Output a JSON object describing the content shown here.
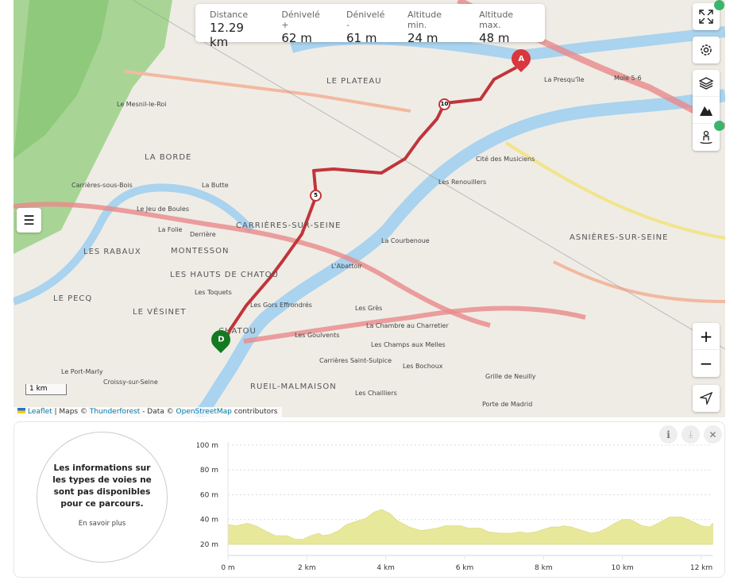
{
  "stats": [
    {
      "label": "Distance",
      "value": "12.29 km"
    },
    {
      "label": "Dénivelé +",
      "value": "62 m"
    },
    {
      "label": "Dénivelé -",
      "value": "61 m"
    },
    {
      "label": "Altitude min.",
      "value": "24 m"
    },
    {
      "label": "Altitude max.",
      "value": "48 m"
    }
  ],
  "map": {
    "labels": [
      "LE PLATEAU",
      "Le Mesnil-le-Roi",
      "LA BORDE",
      "Carrières-sous-Bois",
      "La Butte",
      "Le Jeu de Boules",
      "La Folie",
      "Derrière",
      "CARRIÈRES-SUR-SEINE",
      "MONTESSON",
      "LES RABAUX",
      "LES HAUTS DE CHATOU",
      "LE PECQ",
      "LE VÉSINET",
      "Les Toquets",
      "Les Gors Effrondrés",
      "L'Abattoir",
      "Les Grès",
      "La Courbenoue",
      "Les Renouillers",
      "Cité des Musiciens",
      "La Presqu'île",
      "Mole 5-6",
      "ASNIÈRES-SUR-SEINE",
      "La Chambre au Charretier",
      "Les Champs aux Melles",
      "Carrières Saint-Sulpice",
      "Les Bochoux",
      "Les Goulvents",
      "RUEIL-MALMAISON",
      "Les Chailliers",
      "Croissy-sur-Seine",
      "Le Port-Marly",
      "Grille de Neuilly",
      "Porte de Madrid",
      "CHATOU"
    ],
    "route_markers": {
      "start": "A",
      "end": "D",
      "km": [
        "5",
        "10"
      ]
    },
    "scale": "1 km",
    "attribution": {
      "leaflet": "Leaflet",
      "sep1": " | Maps © ",
      "thunderforest": "Thunderforest",
      "sep2": " - Data © ",
      "osm": "OpenStreetMap",
      "tail": " contributors"
    },
    "controls": [
      "fullscreen-icon",
      "gear-icon",
      "layers-icon",
      "mountain-icon",
      "street-view-icon",
      "zoom-in",
      "zoom-out",
      "locate-icon"
    ],
    "zoom_in": "+",
    "zoom_out": "−",
    "colors": {
      "route": "#c0353a",
      "start": "#d9363e",
      "end": "#137a1f",
      "river": "#a9d3ee",
      "forest": "#9fd08a"
    }
  },
  "panel": {
    "info_text": "Les informations sur les types de voies ne sont pas disponibles pour ce parcours.",
    "learn_more": "En savoir plus",
    "buttons": [
      "info-icon",
      "download-icon",
      "close-icon"
    ]
  },
  "chart_data": {
    "type": "area",
    "x_unit": "km",
    "y_ticks": [
      "100 m",
      "80 m",
      "60 m",
      "40 m",
      "20 m"
    ],
    "x_ticks": [
      "0 m",
      "2 km",
      "4 km",
      "6 km",
      "8 km",
      "10 km",
      "12 km"
    ],
    "ylim": [
      11,
      100
    ],
    "xlim": [
      0,
      12.29
    ],
    "fill": "#e8e89a",
    "grid": true,
    "x": [
      0,
      0.2,
      0.5,
      0.7,
      1,
      1.2,
      1.5,
      1.7,
      1.9,
      2.1,
      2.3,
      2.4,
      2.6,
      2.8,
      3,
      3.3,
      3.5,
      3.7,
      3.9,
      4.1,
      4.3,
      4.6,
      4.9,
      5.1,
      5.3,
      5.5,
      5.9,
      6.1,
      6.4,
      6.6,
      6.9,
      7.2,
      7.4,
      7.6,
      7.8,
      8,
      8.2,
      8.4,
      8.5,
      8.7,
      9,
      9.2,
      9.4,
      9.6,
      9.8,
      10,
      10.2,
      10.5,
      10.7,
      10.9,
      11.2,
      11.5,
      11.8,
      12,
      12.2,
      12.29
    ],
    "y": [
      36,
      35,
      37,
      35,
      30,
      27,
      27,
      24,
      24,
      27,
      29,
      27,
      28,
      31,
      36,
      39,
      41,
      46,
      48,
      45,
      39,
      34,
      31,
      32,
      33,
      35,
      35,
      33,
      33,
      30,
      29,
      29,
      30,
      29,
      30,
      32,
      34,
      34,
      35,
      34,
      31,
      29,
      30,
      33,
      37,
      40,
      40,
      35,
      34,
      37,
      42,
      42,
      38,
      35,
      34,
      37
    ]
  }
}
